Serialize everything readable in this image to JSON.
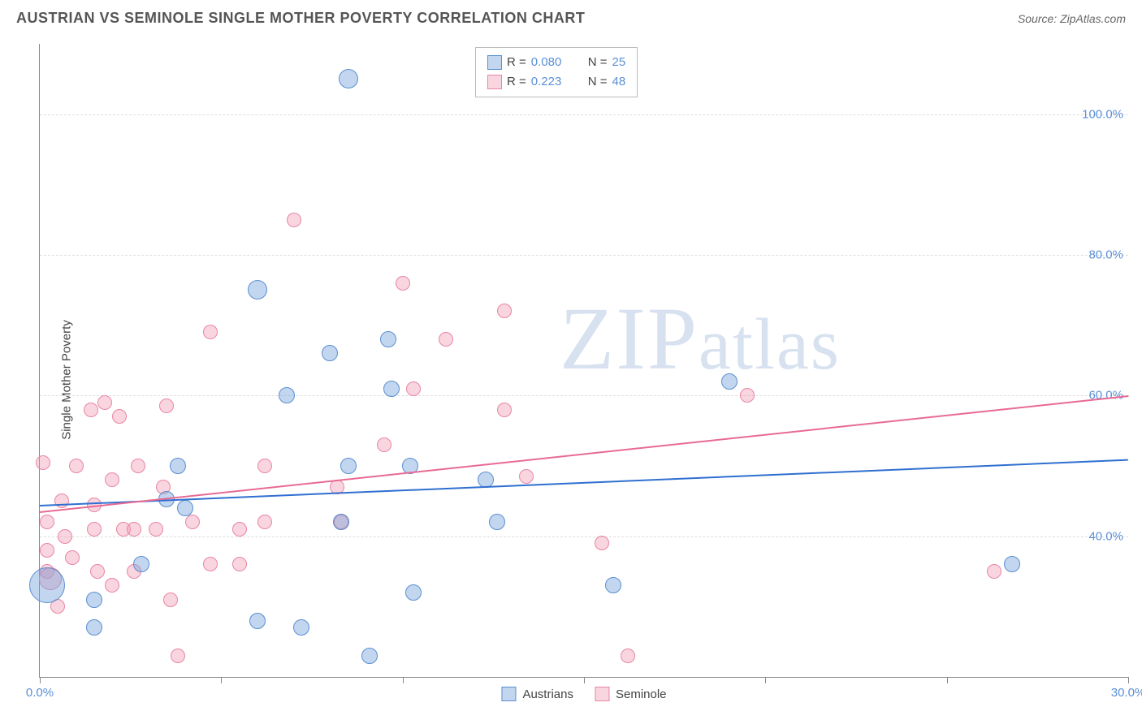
{
  "header": {
    "title": "AUSTRIAN VS SEMINOLE SINGLE MOTHER POVERTY CORRELATION CHART",
    "source": "Source: ZipAtlas.com"
  },
  "chart": {
    "type": "scatter",
    "ylabel": "Single Mother Poverty",
    "background_color": "#ffffff",
    "grid_color": "#dddddd",
    "axis_color": "#888888",
    "tick_label_color": "#5a8fd6",
    "label_fontsize": 15,
    "title_fontsize": 18,
    "xlim": [
      0,
      30
    ],
    "ylim": [
      20,
      110
    ],
    "xtick_positions": [
      0,
      5,
      10,
      15,
      20,
      25,
      30
    ],
    "xtick_labels": {
      "0": "0.0%",
      "30": "30.0%"
    },
    "ytick_positions": [
      40,
      60,
      80,
      100
    ],
    "ytick_labels": {
      "40": "40.0%",
      "60": "60.0%",
      "80": "80.0%",
      "100": "100.0%"
    },
    "series": {
      "austrians": {
        "label": "Austrians",
        "fill": "rgba(120,165,220,0.45)",
        "stroke": "#5b8fd0",
        "trend_color": "#2f6fd0",
        "R": "0.080",
        "N": "25",
        "marker_radius": 10,
        "trend": {
          "x1": 0,
          "y1": 44.5,
          "x2": 30,
          "y2": 51
        },
        "points": [
          {
            "x": 0.2,
            "y": 33,
            "r": 22
          },
          {
            "x": 1.5,
            "y": 27
          },
          {
            "x": 1.5,
            "y": 31
          },
          {
            "x": 2.8,
            "y": 36
          },
          {
            "x": 3.8,
            "y": 50
          },
          {
            "x": 3.5,
            "y": 45.3
          },
          {
            "x": 6.0,
            "y": 28
          },
          {
            "x": 6.0,
            "y": 75,
            "r": 12
          },
          {
            "x": 6.8,
            "y": 60
          },
          {
            "x": 8.0,
            "y": 66
          },
          {
            "x": 7.2,
            "y": 27
          },
          {
            "x": 8.5,
            "y": 50
          },
          {
            "x": 8.5,
            "y": 105,
            "r": 12
          },
          {
            "x": 9.7,
            "y": 61
          },
          {
            "x": 9.6,
            "y": 68
          },
          {
            "x": 9.1,
            "y": 23
          },
          {
            "x": 10.2,
            "y": 50
          },
          {
            "x": 10.3,
            "y": 32
          },
          {
            "x": 12.3,
            "y": 48
          },
          {
            "x": 12.6,
            "y": 42
          },
          {
            "x": 15.8,
            "y": 33
          },
          {
            "x": 19.0,
            "y": 62
          },
          {
            "x": 26.8,
            "y": 36
          },
          {
            "x": 4.0,
            "y": 44
          },
          {
            "x": 8.3,
            "y": 42
          }
        ]
      },
      "seminole": {
        "label": "Seminole",
        "fill": "rgba(240,150,175,0.40)",
        "stroke": "#e985a5",
        "trend_color": "#e86a94",
        "R": "0.223",
        "N": "48",
        "marker_radius": 9,
        "trend": {
          "x1": 0,
          "y1": 43.5,
          "x2": 30,
          "y2": 60
        },
        "points": [
          {
            "x": 0.1,
            "y": 50.5
          },
          {
            "x": 0.2,
            "y": 42
          },
          {
            "x": 0.2,
            "y": 38
          },
          {
            "x": 0.2,
            "y": 35
          },
          {
            "x": 0.3,
            "y": 34,
            "r": 14
          },
          {
            "x": 0.5,
            "y": 30
          },
          {
            "x": 0.7,
            "y": 40
          },
          {
            "x": 1.0,
            "y": 50
          },
          {
            "x": 1.4,
            "y": 58
          },
          {
            "x": 1.5,
            "y": 44.5
          },
          {
            "x": 1.5,
            "y": 41
          },
          {
            "x": 1.6,
            "y": 35
          },
          {
            "x": 1.8,
            "y": 59
          },
          {
            "x": 2.0,
            "y": 48
          },
          {
            "x": 2.2,
            "y": 57
          },
          {
            "x": 2.3,
            "y": 41
          },
          {
            "x": 2.6,
            "y": 35
          },
          {
            "x": 2.6,
            "y": 41
          },
          {
            "x": 2.7,
            "y": 50
          },
          {
            "x": 3.2,
            "y": 41
          },
          {
            "x": 3.4,
            "y": 47
          },
          {
            "x": 3.6,
            "y": 31
          },
          {
            "x": 3.8,
            "y": 23
          },
          {
            "x": 4.7,
            "y": 36
          },
          {
            "x": 4.7,
            "y": 69
          },
          {
            "x": 5.5,
            "y": 36
          },
          {
            "x": 5.5,
            "y": 41
          },
          {
            "x": 6.2,
            "y": 42
          },
          {
            "x": 6.2,
            "y": 50
          },
          {
            "x": 7.0,
            "y": 85
          },
          {
            "x": 8.2,
            "y": 47
          },
          {
            "x": 8.3,
            "y": 42
          },
          {
            "x": 9.5,
            "y": 53
          },
          {
            "x": 10.0,
            "y": 76
          },
          {
            "x": 10.3,
            "y": 61
          },
          {
            "x": 11.2,
            "y": 68
          },
          {
            "x": 12.8,
            "y": 72
          },
          {
            "x": 12.8,
            "y": 58
          },
          {
            "x": 13.4,
            "y": 48.5
          },
          {
            "x": 15.5,
            "y": 39
          },
          {
            "x": 16.2,
            "y": 23
          },
          {
            "x": 19.5,
            "y": 60
          },
          {
            "x": 26.3,
            "y": 35
          },
          {
            "x": 3.5,
            "y": 58.5
          },
          {
            "x": 0.6,
            "y": 45
          },
          {
            "x": 4.2,
            "y": 42
          },
          {
            "x": 2.0,
            "y": 33
          },
          {
            "x": 0.9,
            "y": 37
          }
        ]
      }
    },
    "watermark": "ZIPatlas",
    "legend_top": {
      "rows": [
        {
          "series": "austrians",
          "r_label": "R =",
          "n_label": "N ="
        },
        {
          "series": "seminole",
          "r_label": "R =",
          "n_label": "N ="
        }
      ]
    }
  }
}
